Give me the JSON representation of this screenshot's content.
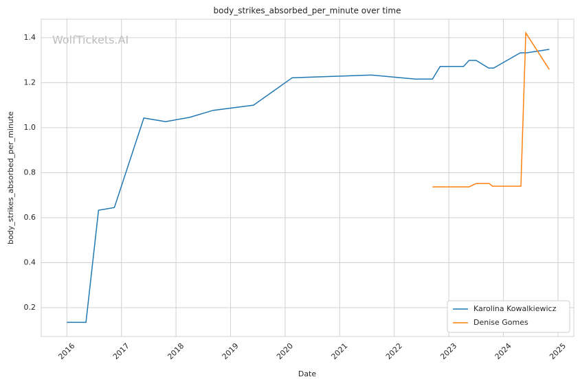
{
  "chart_data": {
    "type": "line",
    "title": "body_strikes_absorbed_per_minute over time",
    "xlabel": "Date",
    "ylabel": "body_strikes_absorbed_per_minute",
    "watermark": "WolfTickets.AI",
    "xlim": [
      2015.53,
      2025.29
    ],
    "ylim": [
      0.072,
      1.482
    ],
    "xticks": [
      2016,
      2017,
      2018,
      2019,
      2020,
      2021,
      2022,
      2023,
      2024,
      2025
    ],
    "yticks": [
      0.2,
      0.4,
      0.6,
      0.8,
      {
        "value": 1,
        "label": "1.0"
      },
      1.2,
      1.4
    ],
    "grid": true,
    "legend": "lower right",
    "series": [
      {
        "name": "Karolina Kowalkiewicz",
        "color": "#1f77b4",
        "x": [
          2016.0,
          2016.35,
          2016.58,
          2016.87,
          2017.41,
          2017.81,
          2018.25,
          2018.68,
          2019.42,
          2020.13,
          2021.58,
          2022.38,
          2022.7,
          2022.84,
          2023.27,
          2023.37,
          2023.5,
          2023.73,
          2023.82,
          2024.31,
          2024.43,
          2024.84
        ],
        "values": [
          0.135,
          0.135,
          0.633,
          0.645,
          1.043,
          1.027,
          1.046,
          1.077,
          1.1,
          1.222,
          1.234,
          1.216,
          1.216,
          1.272,
          1.272,
          1.299,
          1.299,
          1.265,
          1.265,
          1.333,
          1.333,
          1.348
        ]
      },
      {
        "name": "Denise Gomes",
        "color": "#ff7f0e",
        "x": [
          2022.7,
          2023.37,
          2023.5,
          2023.74,
          2023.8,
          2024.32,
          2024.41,
          2024.84
        ],
        "values": [
          0.737,
          0.737,
          0.752,
          0.752,
          0.74,
          0.74,
          1.421,
          1.259
        ]
      }
    ]
  }
}
